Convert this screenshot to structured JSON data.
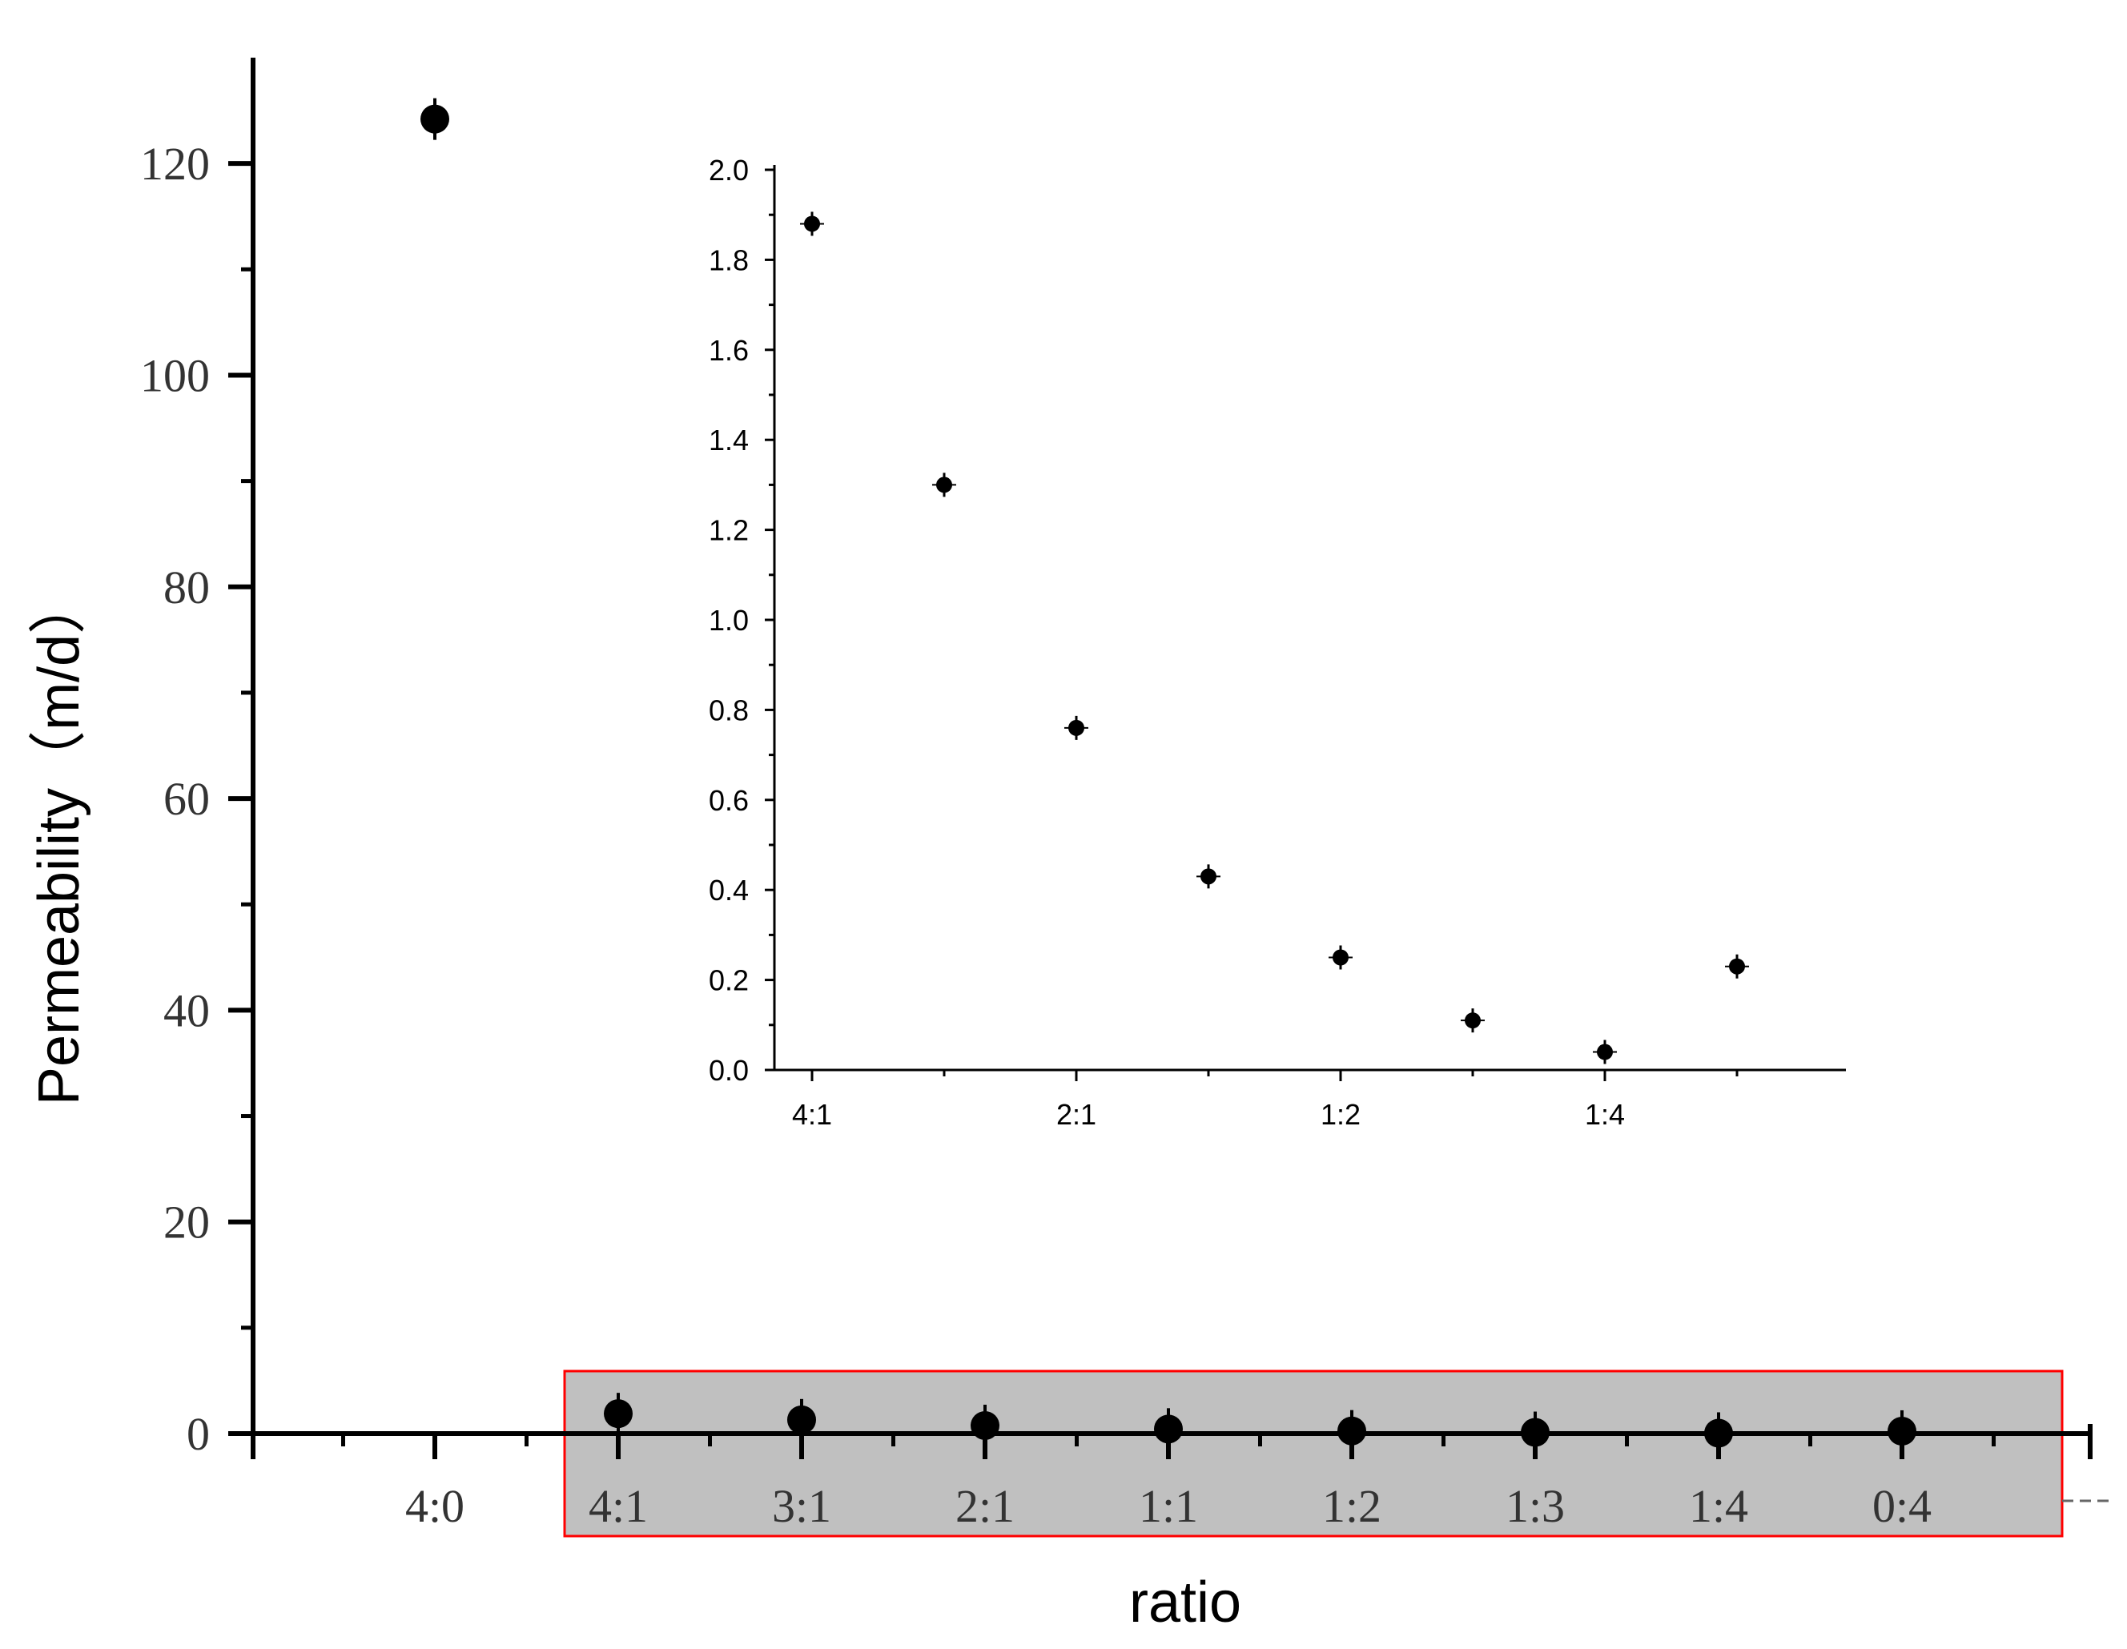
{
  "chart_data": [
    {
      "id": "main",
      "type": "scatter",
      "xlabel": "ratio",
      "ylabel": "Permeability（m/d）",
      "categories": [
        "4:0",
        "4:1",
        "3:1",
        "2:1",
        "1:1",
        "1:2",
        "1:3",
        "1:4",
        "0:4"
      ],
      "values": [
        124.2,
        1.88,
        1.3,
        0.76,
        0.43,
        0.25,
        0.11,
        0.04,
        0.23
      ],
      "ylim": [
        0,
        130
      ],
      "yticks": [
        0,
        20,
        40,
        60,
        80,
        100,
        120
      ],
      "highlight": {
        "from_category": "4:1",
        "to_category": "0:4",
        "fill": "#c0c0c0",
        "border": "#ff0000"
      },
      "marker_color": "#000000"
    },
    {
      "id": "inset",
      "type": "scatter",
      "xlabel": "",
      "ylabel": "",
      "categories": [
        "4:1",
        "3:1",
        "2:1",
        "1:1",
        "1:2",
        "1:3",
        "1:4",
        "0:4"
      ],
      "tick_labels": [
        "4:1",
        "",
        "2:1",
        "",
        "1:2",
        "",
        "1:4",
        ""
      ],
      "values": [
        1.88,
        1.3,
        0.76,
        0.43,
        0.25,
        0.11,
        0.04,
        0.23
      ],
      "ylim": [
        0,
        2.0
      ],
      "yticks": [
        "0.0",
        "0.2",
        "0.4",
        "0.6",
        "0.8",
        "1.0",
        "1.2",
        "1.4",
        "1.6",
        "1.8",
        "2.0"
      ],
      "marker_color": "#000000"
    }
  ]
}
